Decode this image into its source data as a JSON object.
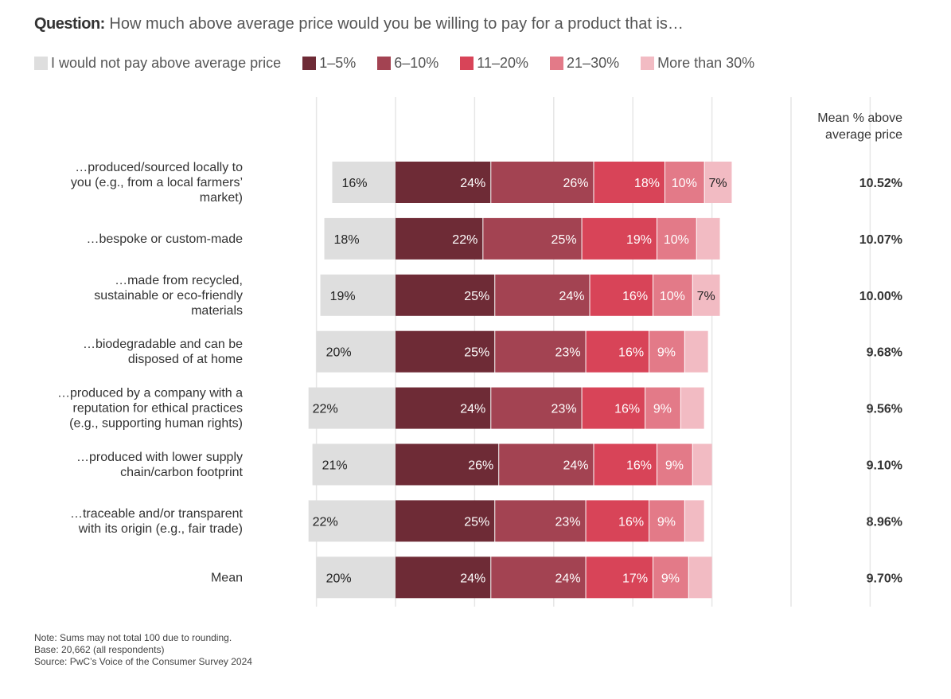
{
  "title": {
    "prefix": "Question:",
    "text": "How much above average price would you be willing to pay for a product that is…"
  },
  "colors": {
    "none": "#dedede",
    "s1": "#6e2b36",
    "s2": "#a34352",
    "s3": "#d84458",
    "s4": "#e37a88",
    "s5": "#f2bbc3",
    "grid": "#e6e6e6"
  },
  "chart_data": {
    "type": "bar",
    "stacked": "diverging-horizontal",
    "mean_header": "Mean % above average price",
    "mean_header_lines": [
      "Mean % above",
      "average price"
    ],
    "categories": [
      [
        "…produced/sourced locally to",
        "you (e.g., from a local farmers’",
        "market)"
      ],
      [
        "…bespoke or custom-made"
      ],
      [
        "…made from recycled,",
        "sustainable or eco-friendly",
        "materials"
      ],
      [
        "…biodegradable and can be",
        "disposed of at home"
      ],
      [
        "…produced by a company with a",
        "reputation for ethical practices",
        "(e.g., supporting human rights)"
      ],
      [
        "…produced with lower supply",
        "chain/carbon footprint"
      ],
      [
        "…traceable and/or transparent",
        "with its origin (e.g., fair trade)"
      ],
      [
        "Mean"
      ]
    ],
    "series": [
      {
        "name": "I would not pay above average price",
        "color_key": "none",
        "values": [
          16,
          18,
          19,
          20,
          22,
          21,
          22,
          20
        ]
      },
      {
        "name": "1–5%",
        "color_key": "s1",
        "values": [
          24,
          22,
          25,
          25,
          24,
          26,
          25,
          24
        ]
      },
      {
        "name": "6–10%",
        "color_key": "s2",
        "values": [
          26,
          25,
          24,
          23,
          23,
          24,
          23,
          24
        ]
      },
      {
        "name": "11–20%",
        "color_key": "s3",
        "values": [
          18,
          19,
          16,
          16,
          16,
          16,
          16,
          17
        ]
      },
      {
        "name": "21–30%",
        "color_key": "s4",
        "values": [
          10,
          10,
          10,
          9,
          9,
          9,
          9,
          9
        ]
      },
      {
        "name": "More than 30%",
        "color_key": "s5",
        "values": [
          7,
          6,
          7,
          6,
          6,
          5,
          5,
          6
        ],
        "labeled": [
          true,
          false,
          true,
          false,
          false,
          false,
          false,
          false
        ]
      }
    ],
    "means": [
      "10.52%",
      "10.07%",
      "10.00%",
      "9.68%",
      "9.56%",
      "9.10%",
      "8.96%",
      "9.70%"
    ],
    "xlim": [
      -20,
      120
    ],
    "grid": true,
    "gridline_step": 20,
    "legend_position": "top"
  },
  "notes": [
    "Note: Sums may not total 100 due to rounding.",
    "Base: 20,662 (all respondents)",
    "Source: PwC’s Voice of the Consumer Survey 2024"
  ]
}
